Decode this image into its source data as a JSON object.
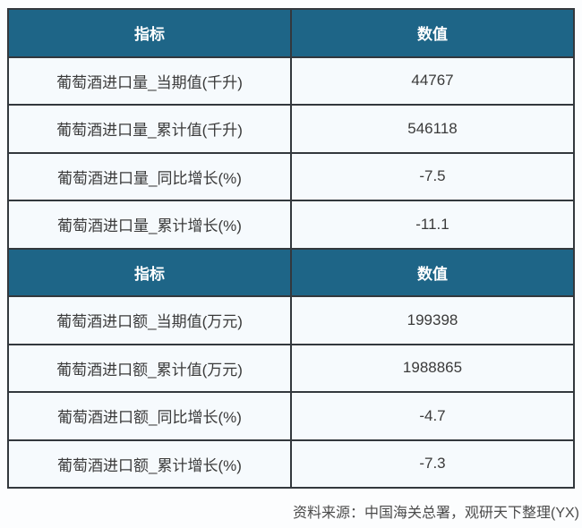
{
  "page": {
    "colors": {
      "page_bg": "#fcfdfe",
      "header_bg": "#1e6587",
      "header_text": "#ffffff",
      "row_bg": "#f6fafd",
      "border": "#33383d",
      "text": "#3a3a3a"
    }
  },
  "table": {
    "sections": [
      {
        "header": {
          "indicator": "指标",
          "value": "数值"
        },
        "rows": [
          {
            "label": "葡萄酒进口量_当期值(千升)",
            "value": "44767"
          },
          {
            "label": "葡萄酒进口量_累计值(千升)",
            "value": "546118"
          },
          {
            "label": "葡萄酒进口量_同比增长(%)",
            "value": "-7.5"
          },
          {
            "label": "葡萄酒进口量_累计增长(%)",
            "value": "-11.1"
          }
        ]
      },
      {
        "header": {
          "indicator": "指标",
          "value": "数值"
        },
        "rows": [
          {
            "label": "葡萄酒进口额_当期值(万元)",
            "value": "199398"
          },
          {
            "label": "葡萄酒进口额_累计值(万元)",
            "value": "1988865"
          },
          {
            "label": "葡萄酒进口额_同比增长(%)",
            "value": "-4.7"
          },
          {
            "label": "葡萄酒进口额_累计增长(%)",
            "value": "-7.3"
          }
        ]
      }
    ]
  },
  "footer": {
    "source": "资料来源：中国海关总署，观研天下整理(YX)"
  },
  "chart_data": {
    "type": "table",
    "columns": [
      "指标",
      "数值"
    ],
    "rows": [
      [
        "葡萄酒进口量_当期值(千升)",
        44767
      ],
      [
        "葡萄酒进口量_累计值(千升)",
        546118
      ],
      [
        "葡萄酒进口量_同比增长(%)",
        -7.5
      ],
      [
        "葡萄酒进口量_累计增长(%)",
        -11.1
      ],
      [
        "葡萄酒进口额_当期值(万元)",
        199398
      ],
      [
        "葡萄酒进口额_累计值(万元)",
        1988865
      ],
      [
        "葡萄酒进口额_同比增长(%)",
        -4.7
      ],
      [
        "葡萄酒进口额_累计增长(%)",
        -7.3
      ]
    ],
    "source": "资料来源：中国海关总署，观研天下整理(YX)"
  }
}
